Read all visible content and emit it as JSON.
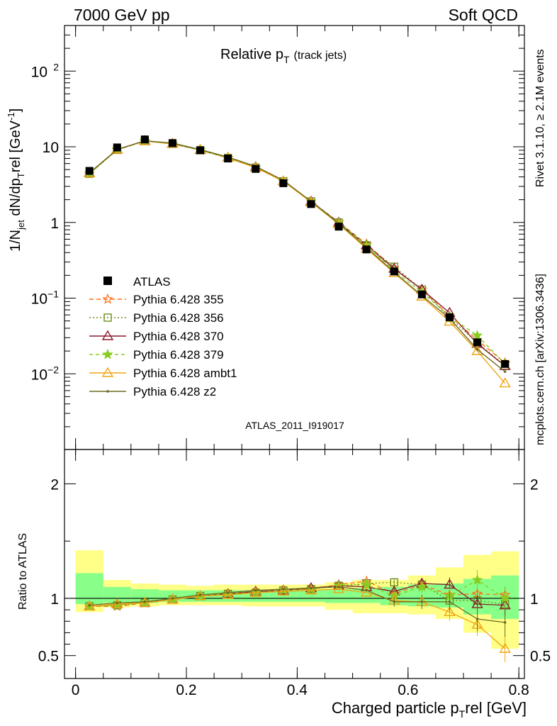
{
  "header": {
    "left": "7000 GeV pp",
    "right": "Soft QCD",
    "side_rivet": "Rivet 3.1.10, ≥ 2.1M events",
    "side_mcplots": "mcplots.cern.ch [arXiv:1306.3436]"
  },
  "analysis_id": "ATLAS_2011_I919017",
  "title_main": "Relative p",
  "title_sub": "T",
  "title_suffix": "(track jets)",
  "colors": {
    "data": "#000000",
    "p355": "#ff6f16",
    "p356": "#6b8e23",
    "p370": "#8b1a2b",
    "p379": "#88cc22",
    "ambt1": "#f0a513",
    "z2": "#6b6b22",
    "band_green": "#88ff88",
    "band_yellow": "#ffff88"
  },
  "chart_data": [
    {
      "type": "line",
      "panel": "main",
      "ylabel_parts": [
        "1/N",
        "jet",
        " dN/dp",
        "T",
        "rel [GeV",
        "-1",
        "]"
      ],
      "y_scale": "log",
      "ylim": [
        0.001,
        400
      ],
      "xlim": [
        -0.02,
        0.81
      ],
      "y_ticks": [
        {
          "value": 100,
          "label": "10",
          "exp": "2"
        },
        {
          "value": 10,
          "label": "10",
          "exp": ""
        },
        {
          "value": 1,
          "label": "1",
          "exp": ""
        },
        {
          "value": 0.1,
          "label": "10",
          "exp": "−1"
        },
        {
          "value": 0.01,
          "label": "10",
          "exp": "−2"
        }
      ],
      "x": [
        0.025,
        0.075,
        0.125,
        0.175,
        0.225,
        0.275,
        0.325,
        0.375,
        0.425,
        0.475,
        0.525,
        0.575,
        0.625,
        0.675,
        0.725,
        0.775
      ],
      "data": {
        "name": "ATLAS",
        "values": [
          4.8,
          9.8,
          12.5,
          11.2,
          9.0,
          7.0,
          5.1,
          3.3,
          1.75,
          0.88,
          0.44,
          0.225,
          0.112,
          0.056,
          0.026,
          0.0135
        ]
      },
      "series": [
        {
          "name": "Pythia 6.428 355",
          "style": "dashed",
          "marker": "star",
          "values": [
            4.4,
            9.1,
            11.9,
            10.9,
            9.0,
            7.1,
            5.3,
            3.5,
            1.9,
            1.0,
            0.52,
            0.25,
            0.13,
            0.058,
            0.028,
            0.014
          ]
        },
        {
          "name": "Pythia 6.428 356",
          "style": "dotted",
          "marker": "square",
          "values": [
            4.4,
            9.1,
            11.9,
            10.9,
            9.0,
            7.1,
            5.3,
            3.5,
            1.9,
            1.0,
            0.5,
            0.26,
            0.13,
            0.055,
            0.026,
            0.0128
          ]
        },
        {
          "name": "Pythia 6.428 370",
          "style": "solid",
          "marker": "triangle",
          "values": [
            4.5,
            9.2,
            12.0,
            11.0,
            9.1,
            7.2,
            5.4,
            3.5,
            1.9,
            1.0,
            0.5,
            0.245,
            0.13,
            0.064,
            0.025,
            0.0127
          ]
        },
        {
          "name": "Pythia 6.428 379",
          "style": "dashed",
          "marker": "star-filled",
          "values": [
            4.4,
            9.2,
            11.9,
            10.9,
            9.0,
            7.1,
            5.3,
            3.5,
            1.9,
            1.0,
            0.5,
            0.23,
            0.12,
            0.058,
            0.032,
            0.0135
          ]
        },
        {
          "name": "Pythia 6.428 ambt1",
          "style": "solid",
          "marker": "triangle",
          "values": [
            4.5,
            9.2,
            11.9,
            11.0,
            9.2,
            7.2,
            5.3,
            3.5,
            1.85,
            0.95,
            0.45,
            0.215,
            0.105,
            0.049,
            0.02,
            0.0075
          ]
        },
        {
          "name": "Pythia 6.428 z2",
          "style": "solid",
          "marker": "dot",
          "values": [
            4.5,
            9.2,
            12.0,
            11.2,
            9.2,
            7.3,
            5.5,
            3.6,
            1.9,
            0.97,
            0.47,
            0.22,
            0.108,
            0.054,
            0.021,
            0.0107
          ]
        }
      ]
    },
    {
      "type": "line",
      "panel": "ratio",
      "ylabel": "Ratio to ATLAS",
      "xlabel_parts": [
        "Charged particle p",
        "T",
        "rel [GeV]"
      ],
      "ylim": [
        0.3,
        2.3
      ],
      "xlim": [
        -0.02,
        0.81
      ],
      "y_ticks": [
        {
          "value": 0.5,
          "label": "0.5"
        },
        {
          "value": 1,
          "label": "1"
        },
        {
          "value": 2,
          "label": "2"
        }
      ],
      "x_ticks": [
        {
          "value": 0,
          "label": "0"
        },
        {
          "value": 0.2,
          "label": "0.2"
        },
        {
          "value": 0.4,
          "label": "0.4"
        },
        {
          "value": 0.6,
          "label": "0.6"
        },
        {
          "value": 0.8,
          "label": "0.8"
        }
      ],
      "x": [
        0.025,
        0.075,
        0.125,
        0.175,
        0.225,
        0.275,
        0.325,
        0.375,
        0.425,
        0.475,
        0.525,
        0.575,
        0.625,
        0.675,
        0.725,
        0.775
      ],
      "band_green": [
        [
          0.95,
          1.22
        ],
        [
          0.96,
          1.1
        ],
        [
          0.96,
          1.08
        ],
        [
          0.97,
          1.07
        ],
        [
          0.97,
          1.07
        ],
        [
          0.97,
          1.07
        ],
        [
          0.97,
          1.07
        ],
        [
          0.97,
          1.07
        ],
        [
          0.97,
          1.07
        ],
        [
          0.96,
          1.08
        ],
        [
          0.96,
          1.09
        ],
        [
          0.94,
          1.1
        ],
        [
          0.93,
          1.12
        ],
        [
          0.92,
          1.13
        ],
        [
          0.86,
          1.17
        ],
        [
          0.82,
          1.2
        ]
      ],
      "band_yellow": [
        [
          0.88,
          1.42
        ],
        [
          0.92,
          1.16
        ],
        [
          0.93,
          1.13
        ],
        [
          0.94,
          1.12
        ],
        [
          0.94,
          1.11
        ],
        [
          0.94,
          1.12
        ],
        [
          0.93,
          1.12
        ],
        [
          0.93,
          1.12
        ],
        [
          0.93,
          1.12
        ],
        [
          0.9,
          1.14
        ],
        [
          0.87,
          1.16
        ],
        [
          0.87,
          1.16
        ],
        [
          0.86,
          1.2
        ],
        [
          0.82,
          1.27
        ],
        [
          0.7,
          1.38
        ],
        [
          0.56,
          1.41
        ]
      ],
      "series": [
        {
          "name": "Pythia 6.428 355",
          "values": [
            0.93,
            0.93,
            0.96,
            0.99,
            1.02,
            1.04,
            1.05,
            1.07,
            1.08,
            1.12,
            1.15,
            1.04,
            1.12,
            1.03,
            1.04,
            1.03
          ]
        },
        {
          "name": "Pythia 6.428 356",
          "values": [
            0.93,
            0.94,
            0.96,
            0.99,
            1.02,
            1.04,
            1.05,
            1.07,
            1.08,
            1.11,
            1.13,
            1.14,
            1.12,
            0.98,
            0.98,
            0.95
          ]
        },
        {
          "name": "Pythia 6.428 370",
          "values": [
            0.93,
            0.95,
            0.96,
            0.99,
            1.02,
            1.04,
            1.06,
            1.07,
            1.09,
            1.11,
            1.1,
            1.06,
            1.13,
            1.12,
            0.95,
            0.94
          ]
        },
        {
          "name": "Pythia 6.428 379",
          "values": [
            0.93,
            0.94,
            0.96,
            0.99,
            1.02,
            1.04,
            1.05,
            1.07,
            1.08,
            1.11,
            1.12,
            1.02,
            1.1,
            1.02,
            1.16,
            1.0
          ]
        },
        {
          "name": "Pythia 6.428 ambt1",
          "values": [
            0.93,
            0.95,
            0.96,
            0.99,
            1.02,
            1.03,
            1.05,
            1.06,
            1.07,
            1.08,
            1.05,
            0.98,
            0.97,
            0.88,
            0.77,
            0.56
          ]
        },
        {
          "name": "Pythia 6.428 z2",
          "values": [
            0.94,
            0.96,
            0.97,
            1.0,
            1.03,
            1.05,
            1.07,
            1.08,
            1.09,
            1.1,
            1.07,
            0.97,
            0.97,
            0.97,
            0.82,
            0.79
          ]
        }
      ]
    }
  ]
}
